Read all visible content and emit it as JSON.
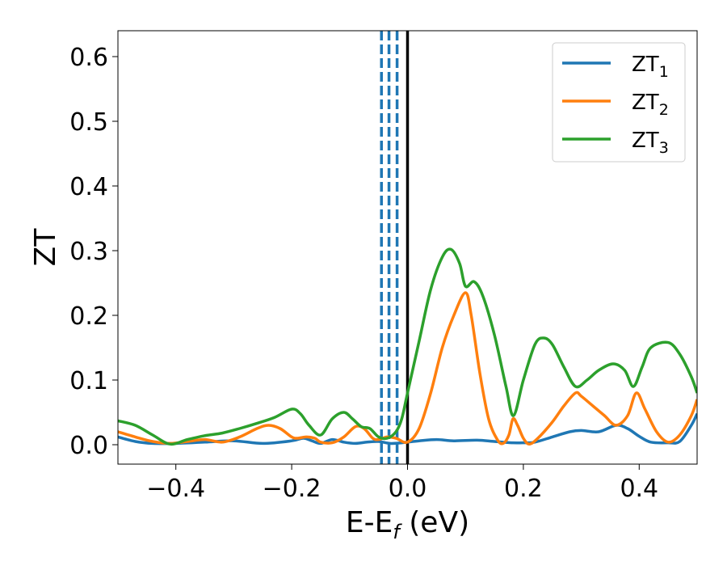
{
  "chart_data": {
    "type": "line",
    "xlabel_main": "E-E",
    "xlabel_sub": "f",
    "xlabel_unit": " (eV)",
    "ylabel": "ZT",
    "xlim": [
      -0.5,
      0.5
    ],
    "ylim": [
      -0.03,
      0.64
    ],
    "xticks": [
      -0.4,
      -0.2,
      0.0,
      0.2,
      0.4
    ],
    "xtick_labels": [
      "−0.4",
      "−0.2",
      "0.0",
      "0.2",
      "0.4"
    ],
    "yticks": [
      0.0,
      0.1,
      0.2,
      0.3,
      0.4,
      0.5,
      0.6
    ],
    "ytick_labels": [
      "0.0",
      "0.1",
      "0.2",
      "0.3",
      "0.4",
      "0.5",
      "0.6"
    ],
    "grid": false,
    "legend_position": "top-right",
    "vlines": [
      {
        "x": -0.045,
        "style": "dashed",
        "color": "#1f77b4"
      },
      {
        "x": -0.032,
        "style": "dashed",
        "color": "#1f77b4"
      },
      {
        "x": -0.018,
        "style": "dashed",
        "color": "#1f77b4"
      },
      {
        "x": 0.0,
        "style": "solid",
        "color": "#000000"
      }
    ],
    "series": [
      {
        "name_main": "ZT",
        "name_sub": "1",
        "color": "#1f77b4",
        "x": [
          -0.5,
          -0.47,
          -0.44,
          -0.4,
          -0.35,
          -0.3,
          -0.25,
          -0.2,
          -0.18,
          -0.165,
          -0.15,
          -0.13,
          -0.11,
          -0.09,
          -0.07,
          -0.05,
          -0.03,
          -0.01,
          0.0,
          0.02,
          0.05,
          0.08,
          0.12,
          0.15,
          0.18,
          0.2,
          0.22,
          0.25,
          0.28,
          0.3,
          0.33,
          0.36,
          0.38,
          0.4,
          0.42,
          0.45,
          0.47,
          0.49,
          0.5
        ],
        "y": [
          0.012,
          0.005,
          0.002,
          0.002,
          0.004,
          0.006,
          0.002,
          0.006,
          0.01,
          0.006,
          0.002,
          0.008,
          0.004,
          0.002,
          0.004,
          0.005,
          0.002,
          0.003,
          0.004,
          0.006,
          0.008,
          0.006,
          0.007,
          0.005,
          0.003,
          0.003,
          0.004,
          0.012,
          0.02,
          0.022,
          0.02,
          0.03,
          0.025,
          0.013,
          0.004,
          0.003,
          0.005,
          0.03,
          0.048
        ]
      },
      {
        "name_main": "ZT",
        "name_sub": "2",
        "color": "#ff7f0e",
        "x": [
          -0.5,
          -0.47,
          -0.44,
          -0.41,
          -0.38,
          -0.35,
          -0.32,
          -0.29,
          -0.26,
          -0.24,
          -0.22,
          -0.2,
          -0.19,
          -0.175,
          -0.16,
          -0.15,
          -0.13,
          -0.11,
          -0.09,
          -0.075,
          -0.06,
          -0.05,
          -0.035,
          -0.02,
          0.0,
          0.02,
          0.04,
          0.06,
          0.08,
          0.1,
          0.11,
          0.125,
          0.14,
          0.155,
          0.165,
          0.175,
          0.182,
          0.19,
          0.2,
          0.21,
          0.225,
          0.25,
          0.27,
          0.29,
          0.3,
          0.32,
          0.34,
          0.36,
          0.38,
          0.395,
          0.41,
          0.43,
          0.45,
          0.47,
          0.49,
          0.5
        ],
        "y": [
          0.02,
          0.012,
          0.005,
          0.002,
          0.005,
          0.008,
          0.004,
          0.012,
          0.025,
          0.03,
          0.025,
          0.012,
          0.01,
          0.012,
          0.01,
          0.004,
          0.003,
          0.012,
          0.028,
          0.025,
          0.01,
          0.008,
          0.012,
          0.01,
          0.004,
          0.025,
          0.08,
          0.15,
          0.2,
          0.235,
          0.2,
          0.11,
          0.04,
          0.008,
          0.002,
          0.015,
          0.04,
          0.03,
          0.01,
          0.001,
          0.01,
          0.035,
          0.06,
          0.08,
          0.075,
          0.06,
          0.045,
          0.03,
          0.045,
          0.08,
          0.055,
          0.02,
          0.004,
          0.015,
          0.045,
          0.07
        ]
      },
      {
        "name_main": "ZT",
        "name_sub": "3",
        "color": "#2ca02c",
        "x": [
          -0.5,
          -0.47,
          -0.44,
          -0.41,
          -0.38,
          -0.35,
          -0.32,
          -0.29,
          -0.26,
          -0.23,
          -0.2,
          -0.185,
          -0.17,
          -0.15,
          -0.13,
          -0.11,
          -0.095,
          -0.08,
          -0.065,
          -0.05,
          -0.035,
          -0.02,
          -0.01,
          0.0,
          0.02,
          0.04,
          0.06,
          0.075,
          0.09,
          0.1,
          0.115,
          0.13,
          0.15,
          0.17,
          0.183,
          0.2,
          0.22,
          0.235,
          0.25,
          0.27,
          0.29,
          0.31,
          0.33,
          0.355,
          0.375,
          0.39,
          0.405,
          0.42,
          0.45,
          0.47,
          0.49,
          0.5
        ],
        "y": [
          0.037,
          0.03,
          0.015,
          0.001,
          0.008,
          0.014,
          0.018,
          0.025,
          0.033,
          0.042,
          0.055,
          0.048,
          0.03,
          0.015,
          0.04,
          0.05,
          0.04,
          0.028,
          0.025,
          0.012,
          0.01,
          0.02,
          0.04,
          0.08,
          0.16,
          0.24,
          0.29,
          0.302,
          0.28,
          0.245,
          0.252,
          0.23,
          0.17,
          0.09,
          0.045,
          0.1,
          0.155,
          0.165,
          0.155,
          0.12,
          0.09,
          0.1,
          0.115,
          0.125,
          0.115,
          0.09,
          0.12,
          0.15,
          0.158,
          0.14,
          0.105,
          0.08
        ]
      }
    ]
  }
}
